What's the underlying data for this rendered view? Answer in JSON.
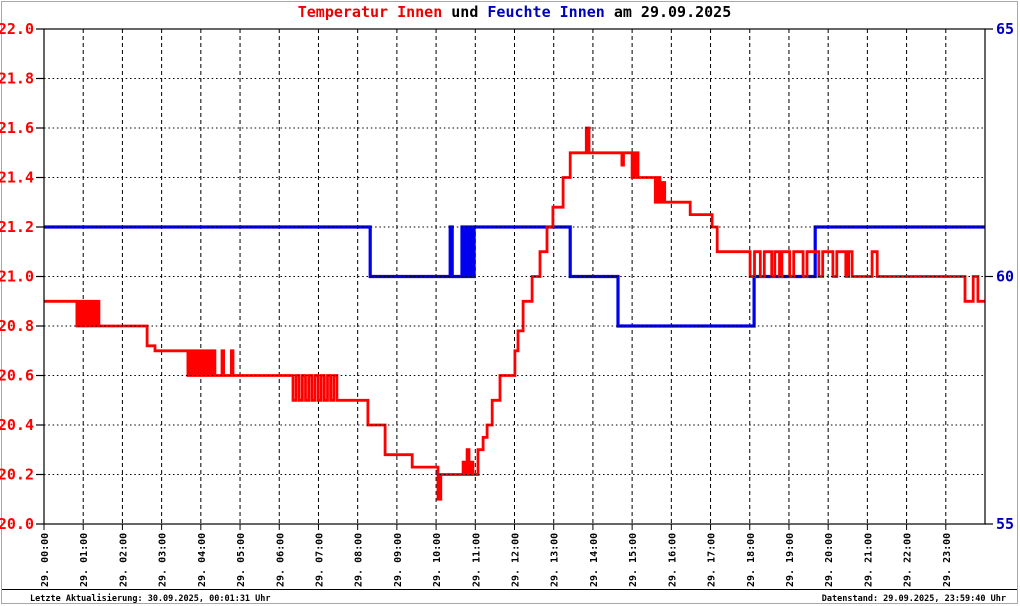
{
  "title": {
    "temperature": "Temperatur Innen",
    "connector": " und ",
    "humidity": "Feuchte Innen",
    "date_suffix": " am 29.09.2025"
  },
  "footer": {
    "left": "Letzte Aktualisierung: 30.09.2025, 00:01:31 Uhr",
    "right": "Datenstand: 29.09.2025, 23:59:40 Uhr"
  },
  "colors": {
    "temperature_line": "#ff0000",
    "temperature_text": "#ee0000",
    "humidity_line": "#0000ee",
    "humidity_text": "#0000bb",
    "grid": "#000000",
    "frame": "#000000",
    "outer_border": "#a8a8a8"
  },
  "chart_data": {
    "type": "line",
    "title": "Temperatur Innen und Feuchte Innen am 29.09.2025",
    "grid": true,
    "legend_position": "in-title",
    "x_axis": {
      "range": [
        0,
        24
      ],
      "tick_hours": [
        0,
        1,
        2,
        3,
        4,
        5,
        6,
        7,
        8,
        9,
        10,
        11,
        12,
        13,
        14,
        15,
        16,
        17,
        18,
        19,
        20,
        21,
        22,
        23
      ],
      "labels": [
        "29. 00:00",
        "29. 01:00",
        "29. 02:00",
        "29. 03:00",
        "29. 04:00",
        "29. 05:00",
        "29. 06:00",
        "29. 07:00",
        "29. 08:00",
        "29. 09:00",
        "29. 10:00",
        "29. 11:00",
        "29. 12:00",
        "29. 13:00",
        "29. 14:00",
        "29. 15:00",
        "29. 16:00",
        "29. 17:00",
        "29. 18:00",
        "29. 19:00",
        "29. 20:00",
        "29. 21:00",
        "29. 22:00",
        "29. 23:00"
      ]
    },
    "y_left": {
      "name": "Temperatur Innen (°C)",
      "range": [
        20.0,
        22.0
      ],
      "ticks": [
        22.0,
        21.8,
        21.6,
        21.4,
        21.2,
        21.0,
        20.8,
        20.6,
        20.4,
        20.2,
        20.0
      ],
      "tick_labels": [
        "22.0",
        "21.8",
        "21.6",
        "21.4",
        "21.2",
        "21.0",
        "20.8",
        "20.6",
        "20.4",
        "20.2",
        "20.0"
      ]
    },
    "y_right": {
      "name": "Feuchte Innen (%)",
      "range": [
        55,
        65
      ],
      "ticks": [
        65,
        60,
        55
      ],
      "tick_labels": [
        "65",
        "60",
        "55"
      ]
    },
    "series": [
      {
        "name": "Temperatur Innen",
        "axis": "left",
        "color": "#ff0000",
        "step": true,
        "points": [
          [
            0,
            20.9
          ],
          [
            0.84,
            20.8
          ],
          [
            0.9,
            20.9
          ],
          [
            0.96,
            20.8
          ],
          [
            1.02,
            20.9
          ],
          [
            1.08,
            20.8
          ],
          [
            1.14,
            20.9
          ],
          [
            1.2,
            20.8
          ],
          [
            1.26,
            20.9
          ],
          [
            1.32,
            20.8
          ],
          [
            1.38,
            20.9
          ],
          [
            1.4,
            20.8
          ],
          [
            2.63,
            20.72
          ],
          [
            2.83,
            20.7
          ],
          [
            3.67,
            20.6
          ],
          [
            3.74,
            20.7
          ],
          [
            3.81,
            20.6
          ],
          [
            3.88,
            20.7
          ],
          [
            3.95,
            20.6
          ],
          [
            4.02,
            20.7
          ],
          [
            4.09,
            20.6
          ],
          [
            4.16,
            20.7
          ],
          [
            4.23,
            20.6
          ],
          [
            4.3,
            20.7
          ],
          [
            4.36,
            20.6
          ],
          [
            4.54,
            20.7
          ],
          [
            4.58,
            20.6
          ],
          [
            4.78,
            20.7
          ],
          [
            4.82,
            20.6
          ],
          [
            6.35,
            20.5
          ],
          [
            6.43,
            20.6
          ],
          [
            6.51,
            20.5
          ],
          [
            6.59,
            20.6
          ],
          [
            6.67,
            20.5
          ],
          [
            6.75,
            20.6
          ],
          [
            6.83,
            20.5
          ],
          [
            6.91,
            20.6
          ],
          [
            6.99,
            20.5
          ],
          [
            7.07,
            20.6
          ],
          [
            7.15,
            20.5
          ],
          [
            7.23,
            20.6
          ],
          [
            7.31,
            20.5
          ],
          [
            7.39,
            20.6
          ],
          [
            7.47,
            20.5
          ],
          [
            8.26,
            20.4
          ],
          [
            8.7,
            20.28
          ],
          [
            9.39,
            20.23
          ],
          [
            10.05,
            20.1
          ],
          [
            10.12,
            20.2
          ],
          [
            10.69,
            20.25
          ],
          [
            10.74,
            20.2
          ],
          [
            10.79,
            20.3
          ],
          [
            10.84,
            20.2
          ],
          [
            10.89,
            20.25
          ],
          [
            10.94,
            20.2
          ],
          [
            11.07,
            20.3
          ],
          [
            11.2,
            20.35
          ],
          [
            11.3,
            20.4
          ],
          [
            11.43,
            20.5
          ],
          [
            11.63,
            20.6
          ],
          [
            12.01,
            20.7
          ],
          [
            12.09,
            20.78
          ],
          [
            12.22,
            20.9
          ],
          [
            12.45,
            21.0
          ],
          [
            12.65,
            21.1
          ],
          [
            12.83,
            21.2
          ],
          [
            12.98,
            21.28
          ],
          [
            13.24,
            21.4
          ],
          [
            13.42,
            21.5
          ],
          [
            13.83,
            21.6
          ],
          [
            13.9,
            21.5
          ],
          [
            14.74,
            21.45
          ],
          [
            14.78,
            21.5
          ],
          [
            15.0,
            21.4
          ],
          [
            15.05,
            21.5
          ],
          [
            15.09,
            21.4
          ],
          [
            15.13,
            21.5
          ],
          [
            15.15,
            21.4
          ],
          [
            15.59,
            21.3
          ],
          [
            15.65,
            21.4
          ],
          [
            15.71,
            21.3
          ],
          [
            15.77,
            21.38
          ],
          [
            15.83,
            21.3
          ],
          [
            16.48,
            21.25
          ],
          [
            17.04,
            21.2
          ],
          [
            17.17,
            21.1
          ],
          [
            18.01,
            21.0
          ],
          [
            18.12,
            21.1
          ],
          [
            18.27,
            21.0
          ],
          [
            18.37,
            21.1
          ],
          [
            18.56,
            21.0
          ],
          [
            18.64,
            21.1
          ],
          [
            18.76,
            21.0
          ],
          [
            18.82,
            21.1
          ],
          [
            19.02,
            21.0
          ],
          [
            19.12,
            21.1
          ],
          [
            19.36,
            21.0
          ],
          [
            19.46,
            21.1
          ],
          [
            19.76,
            21.0
          ],
          [
            19.86,
            21.1
          ],
          [
            20.12,
            21.0
          ],
          [
            20.22,
            21.1
          ],
          [
            20.45,
            21.0
          ],
          [
            20.52,
            21.1
          ],
          [
            20.61,
            21.0
          ],
          [
            21.12,
            21.1
          ],
          [
            21.25,
            21.0
          ],
          [
            23.49,
            20.9
          ],
          [
            23.7,
            21.0
          ],
          [
            23.82,
            20.9
          ]
        ]
      },
      {
        "name": "Feuchte Innen",
        "axis": "right",
        "color": "#0000ee",
        "step": true,
        "points": [
          [
            0,
            61
          ],
          [
            8.32,
            60
          ],
          [
            10.36,
            61
          ],
          [
            10.41,
            60
          ],
          [
            10.66,
            61
          ],
          [
            10.72,
            60
          ],
          [
            10.78,
            61
          ],
          [
            10.84,
            60
          ],
          [
            10.9,
            61
          ],
          [
            10.94,
            60
          ],
          [
            10.97,
            61
          ],
          [
            13.42,
            60
          ],
          [
            14.64,
            59
          ],
          [
            18.11,
            60
          ],
          [
            19.67,
            61
          ]
        ]
      }
    ]
  }
}
